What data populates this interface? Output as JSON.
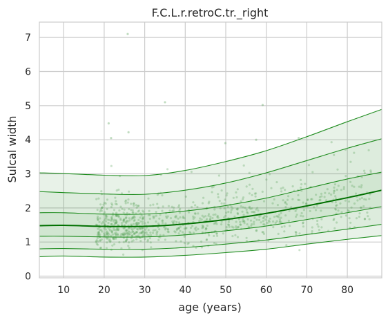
{
  "chart_data": {
    "type": "line",
    "title": "F.C.L.r.retroC.tr._right",
    "xlabel": "age (years)",
    "ylabel": "Sulcal width",
    "xlim": [
      4,
      88.5
    ],
    "ylim": [
      -0.05,
      7.45
    ],
    "xticks": [
      10,
      20,
      30,
      40,
      50,
      60,
      70,
      80
    ],
    "yticks": [
      0,
      1,
      2,
      3,
      4,
      5,
      6,
      7
    ],
    "grid": true,
    "legend": "none",
    "colors": {
      "line": "#1e8c1e",
      "median": "#007000",
      "fill": "#2e8b2e",
      "scatter": "#4a9a4a",
      "grid": "#cccccc"
    },
    "x": [
      4,
      10,
      20,
      30,
      40,
      50,
      60,
      70,
      80,
      88.5
    ],
    "series": [
      {
        "percentile": 0.01,
        "values": [
          0.57,
          0.59,
          0.56,
          0.56,
          0.61,
          0.69,
          0.79,
          0.94,
          1.08,
          1.19
        ]
      },
      {
        "percentile": 0.05,
        "values": [
          0.8,
          0.81,
          0.79,
          0.79,
          0.84,
          0.94,
          1.06,
          1.22,
          1.38,
          1.52
        ]
      },
      {
        "percentile": 0.25,
        "values": [
          1.17,
          1.17,
          1.15,
          1.15,
          1.21,
          1.33,
          1.47,
          1.66,
          1.86,
          2.04
        ]
      },
      {
        "percentile": 0.5,
        "values": [
          1.48,
          1.49,
          1.46,
          1.46,
          1.53,
          1.66,
          1.84,
          2.06,
          2.3,
          2.52
        ]
      },
      {
        "percentile": 0.75,
        "values": [
          1.86,
          1.86,
          1.82,
          1.82,
          1.91,
          2.07,
          2.29,
          2.57,
          2.85,
          3.05
        ]
      },
      {
        "percentile": 0.95,
        "values": [
          2.48,
          2.45,
          2.41,
          2.4,
          2.52,
          2.73,
          3.03,
          3.39,
          3.75,
          4.03
        ]
      },
      {
        "percentile": 0.99,
        "values": [
          3.03,
          3.01,
          2.96,
          2.95,
          3.1,
          3.36,
          3.68,
          4.09,
          4.53,
          4.89
        ]
      }
    ],
    "outliers": [
      [
        25.8,
        7.1
      ],
      [
        35.0,
        5.1
      ],
      [
        59.1,
        5.02
      ],
      [
        21.1,
        4.48
      ],
      [
        26.0,
        4.22
      ],
      [
        21.7,
        4.05
      ],
      [
        57.5,
        4.0
      ],
      [
        68.0,
        4.05
      ],
      [
        49.9,
        3.9
      ]
    ],
    "scatter_seed": 7,
    "scatter_count": 900
  }
}
